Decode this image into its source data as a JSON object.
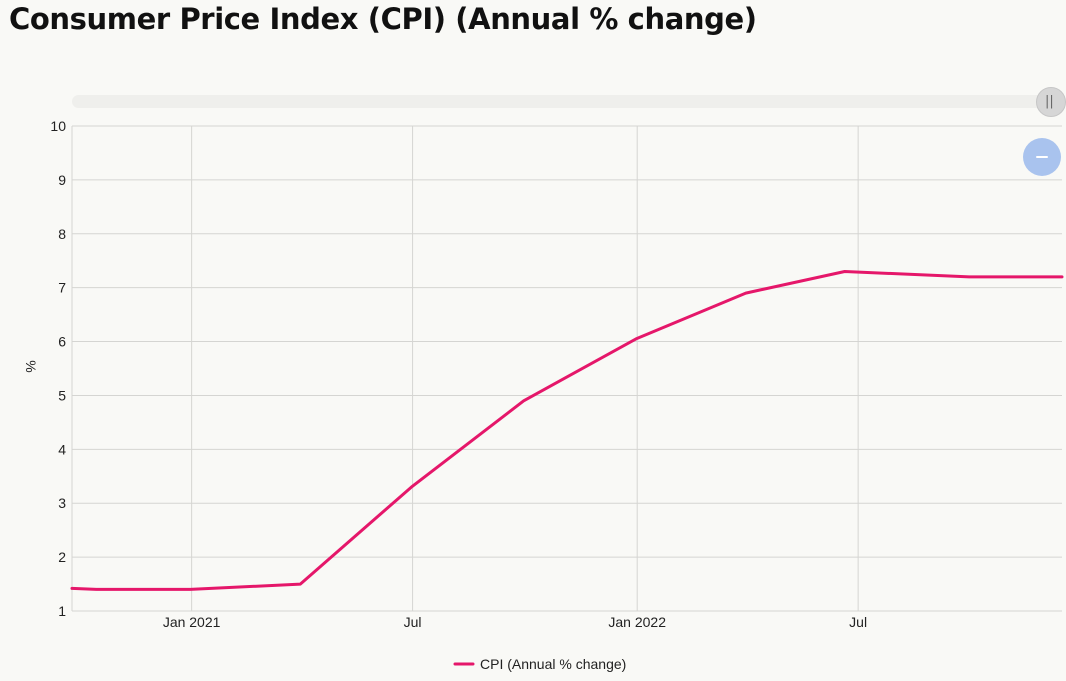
{
  "title": "Consumer Price Index (CPI) (Annual % change)",
  "navigator": {
    "handle_icon": "pause-bars-icon",
    "zoom_icon": "minus-icon"
  },
  "colors": {
    "series": "#e5176a",
    "grid": "#d5d5d2",
    "background": "#f9f9f6",
    "zoom_button": "#a9c3ee"
  },
  "chart_data": {
    "type": "line",
    "title": "Consumer Price Index (CPI) (Annual % change)",
    "xlabel": "",
    "ylabel": "%",
    "ylim": [
      1,
      10
    ],
    "xlim": [
      "2020-09-25",
      "2022-12-15"
    ],
    "yticks": [
      1,
      2,
      3,
      4,
      5,
      6,
      7,
      8,
      9,
      10
    ],
    "xticks": [
      {
        "label": "Jan 2021",
        "date": "2021-01-01"
      },
      {
        "label": "Jul",
        "date": "2021-07-01"
      },
      {
        "label": "Jan 2022",
        "date": "2022-01-01"
      },
      {
        "label": "Jul",
        "date": "2022-07-01"
      }
    ],
    "grid": true,
    "legend": {
      "position": "bottom-center"
    },
    "series": [
      {
        "name": "CPI (Annual % change)",
        "color": "#e5176a",
        "x": [
          "2020-09-25",
          "2020-10-15",
          "2020-12-31",
          "2021-03-31",
          "2021-06-30",
          "2021-09-30",
          "2021-12-31",
          "2022-03-31",
          "2022-06-20",
          "2022-09-30",
          "2022-12-15"
        ],
        "values": [
          1.42,
          1.4,
          1.4,
          1.5,
          3.3,
          4.9,
          6.05,
          6.9,
          7.3,
          7.2,
          7.2
        ]
      }
    ]
  }
}
